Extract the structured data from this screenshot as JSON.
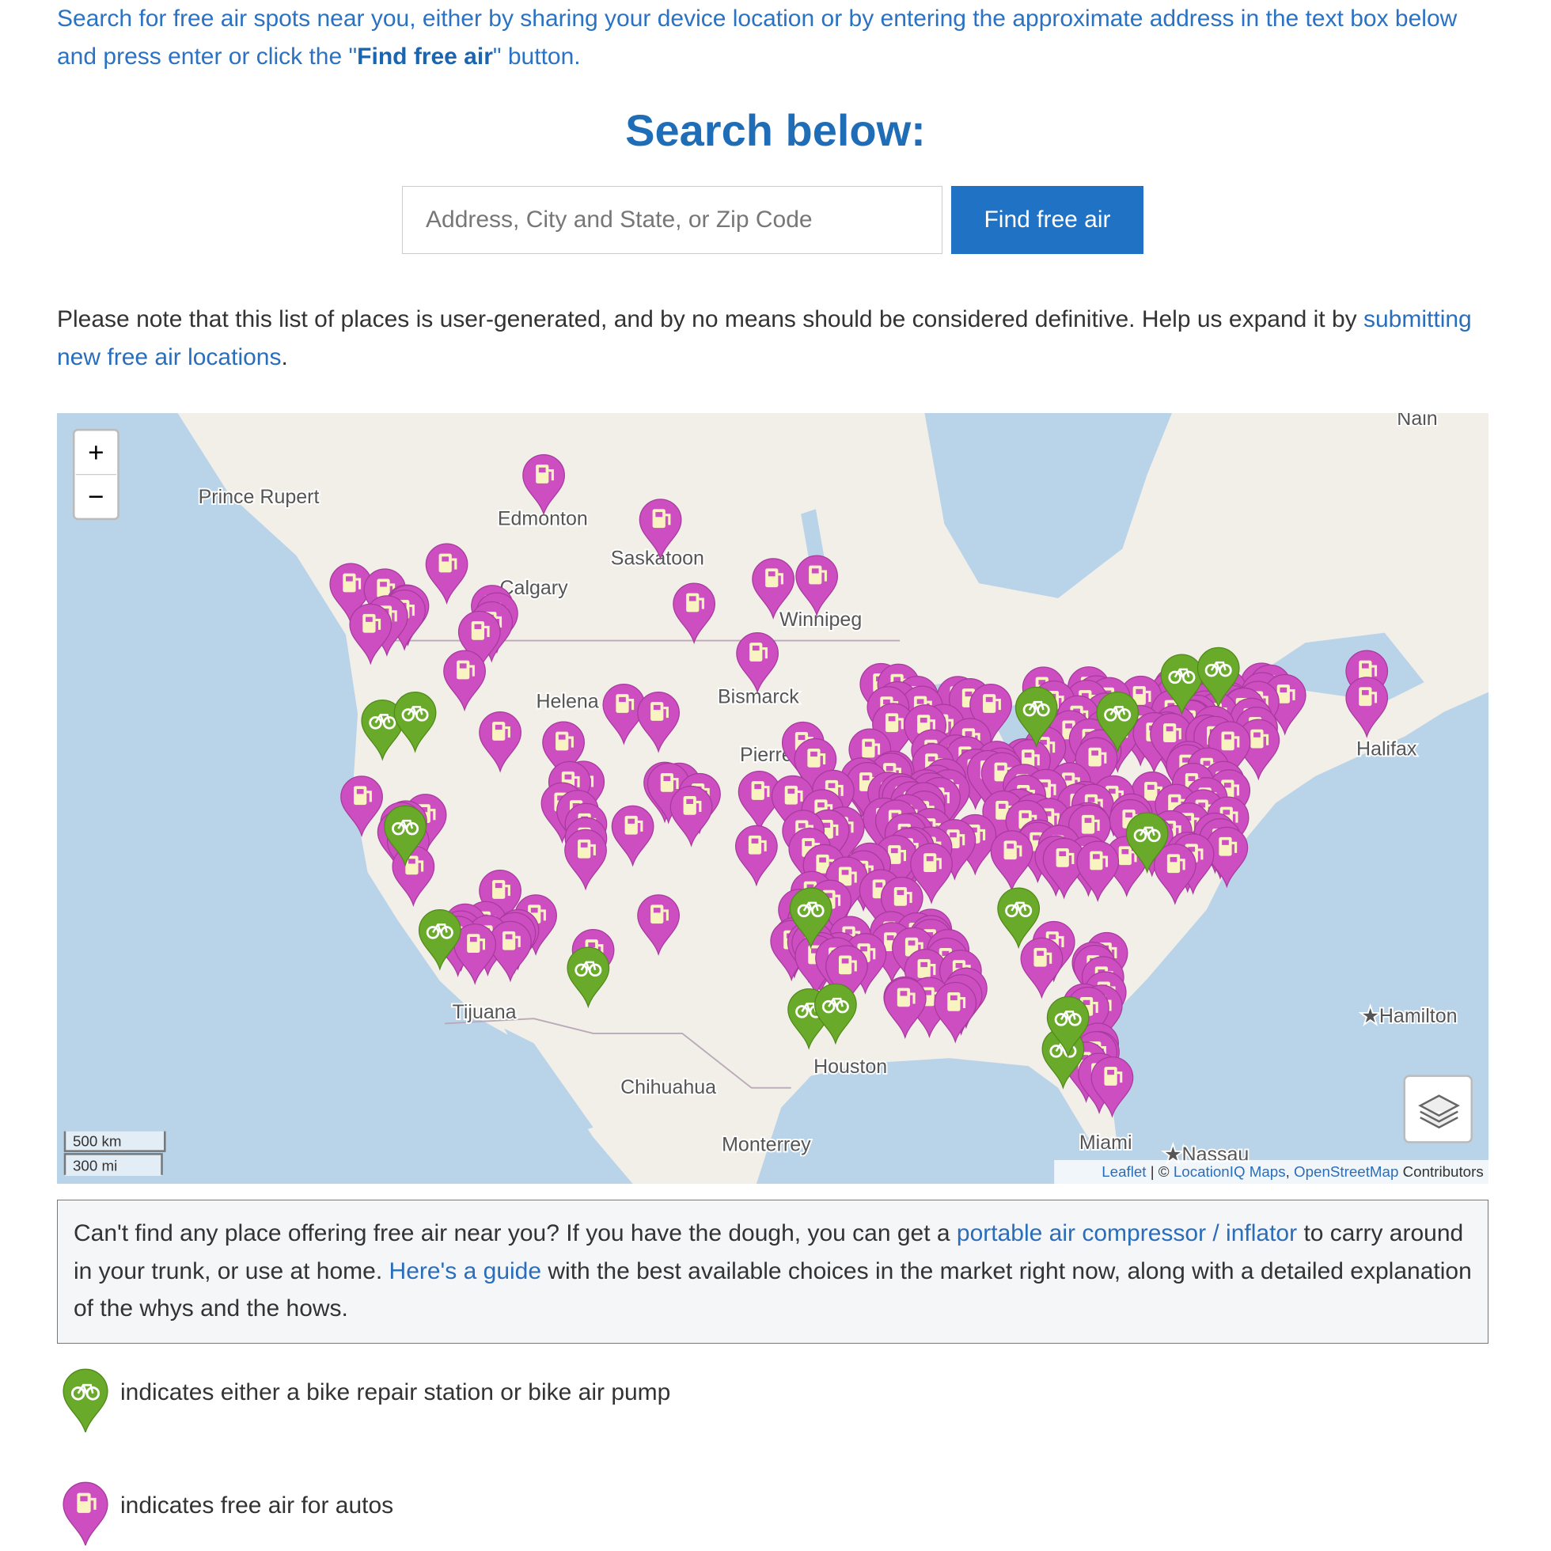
{
  "intro": {
    "text": "Search for free air spots near you, either by sharing your device location or by entering the approximate address in the text box below and press enter or click the \"",
    "bold": "Find free air",
    "end": "\" button."
  },
  "search": {
    "heading": "Search below:",
    "placeholder": "Address, City and State, or Zip Code",
    "button": "Find free air"
  },
  "note": {
    "text": "Please note that this list of places is user-generated, and by no means should be considered definitive. Help us expand it by ",
    "link": "submitting new free air locations",
    "end": "."
  },
  "map": {
    "zoom_in": "+",
    "zoom_out": "−",
    "scale_km": "500 km",
    "scale_mi": "300 mi",
    "attribution": {
      "leaflet": "Leaflet",
      "sep": " | © ",
      "locationiq": "LocationIQ Maps",
      "comma": ", ",
      "osm": "OpenStreetMap",
      "contributors": " Contributors"
    },
    "labels": [
      "Nain",
      "Prince Rupert",
      "Edmonton",
      "Saskatoon",
      "Calgary",
      "Winnipeg",
      "Helena",
      "Bismarck",
      "Pierre",
      "Halifax",
      "Houston",
      "Chihuahua",
      "Monterrey",
      "Tijuana",
      "Miami",
      "★Hamilton",
      "★Nassau"
    ]
  },
  "info": {
    "text1": "Can't find any place offering free air near you? If you have the dough, you can get a ",
    "link1": "portable air compressor / inflator",
    "text2": " to carry around in your trunk, or use at home. ",
    "link2": "Here's a guide",
    "text3": " with the best available choices in the market right now, along with a detailed explanation of the whys and the hows."
  },
  "legend": {
    "bike": "indicates either a bike repair station or bike air pump",
    "auto": "indicates free air for autos"
  }
}
